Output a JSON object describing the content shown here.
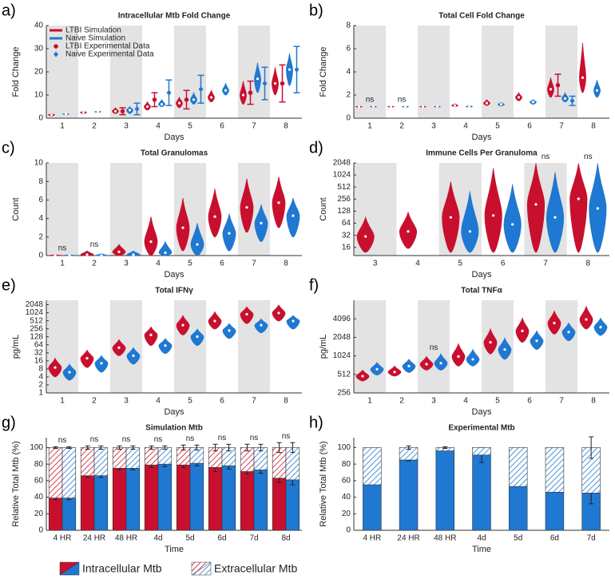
{
  "chart_data": [
    {
      "type": "violin",
      "label": "a)",
      "title": "Intracellular Mtb Fold Change",
      "xlabel": "Days",
      "ylabel": "Fold Change",
      "shaded": true,
      "legend": "upper left",
      "categories": [
        "1",
        "2",
        "3",
        "4",
        "5",
        "6",
        "7",
        "8"
      ],
      "ylim": [
        0,
        40
      ],
      "yticks": [
        0,
        10,
        20,
        30,
        40
      ],
      "series": [
        {
          "name": "LTBI Simulation",
          "color": "#c8102e",
          "values": [
            1.5,
            2.5,
            3,
            5,
            6.5,
            9,
            10,
            15
          ],
          "low": [
            1,
            2,
            2,
            3.5,
            4.5,
            7,
            6,
            10
          ],
          "high": [
            2,
            3,
            4.5,
            7,
            9,
            12,
            16,
            22
          ]
        },
        {
          "name": "Naive Simulation",
          "color": "#1f78d1",
          "values": [
            1.8,
            2.8,
            3.5,
            6,
            8,
            12,
            17,
            21
          ],
          "low": [
            1.5,
            2.5,
            2,
            5,
            6,
            10,
            11,
            14
          ],
          "high": [
            2,
            3,
            5,
            8,
            11,
            15,
            24,
            28
          ]
        },
        {
          "name": "LTBI Experimental Data",
          "color": "#c8102e",
          "marker": "circle",
          "values": [
            null,
            null,
            3,
            8,
            8,
            null,
            11,
            15
          ],
          "errors": [
            null,
            null,
            1.5,
            3,
            4,
            null,
            5,
            8
          ]
        },
        {
          "name": "Naive Experimental Data",
          "color": "#1f78d1",
          "marker": "diamond",
          "values": [
            null,
            null,
            4,
            11,
            12.5,
            null,
            15,
            21
          ],
          "errors": [
            null,
            null,
            2.5,
            5.5,
            6,
            null,
            7,
            10
          ]
        }
      ]
    },
    {
      "type": "violin",
      "label": "b)",
      "title": "Total Cell Fold Change",
      "xlabel": "Days",
      "ylabel": "Fold Change",
      "shaded": true,
      "categories": [
        "1",
        "2",
        "3",
        "4",
        "5",
        "6",
        "7",
        "8"
      ],
      "ylim": [
        0,
        8
      ],
      "yticks": [
        0,
        2,
        4,
        6,
        8
      ],
      "annotations": [
        {
          "text": "ns",
          "category": "1"
        },
        {
          "text": "ns",
          "category": "2"
        }
      ],
      "series": [
        {
          "name": "LTBI Simulation",
          "color": "#c8102e",
          "values": [
            1,
            1,
            1,
            1.1,
            1.3,
            1.8,
            2.5,
            3.5
          ],
          "low": [
            0.95,
            0.95,
            0.95,
            1,
            1.1,
            1.5,
            1.8,
            2.2
          ],
          "high": [
            1.05,
            1.05,
            1.05,
            1.25,
            1.6,
            2.2,
            3.5,
            6.5
          ]
        },
        {
          "name": "Naive Simulation",
          "color": "#1f78d1",
          "values": [
            1,
            1,
            1,
            1,
            1.2,
            1.4,
            1.7,
            2.4
          ],
          "low": [
            0.95,
            0.95,
            0.95,
            0.95,
            1.05,
            1.2,
            1.4,
            1.8
          ],
          "high": [
            1.05,
            1.05,
            1.05,
            1.1,
            1.35,
            1.6,
            2.2,
            3.3
          ]
        },
        {
          "name": "LTBI Experimental Data",
          "color": "#c8102e",
          "marker": "circle",
          "values": [
            null,
            null,
            null,
            null,
            null,
            null,
            2.85,
            null
          ],
          "errors": [
            null,
            null,
            null,
            null,
            null,
            null,
            0.95,
            null
          ]
        },
        {
          "name": "Naive Experimental Data",
          "color": "#1f78d1",
          "marker": "diamond",
          "values": [
            null,
            null,
            null,
            null,
            null,
            null,
            1.5,
            null
          ],
          "errors": [
            null,
            null,
            null,
            null,
            null,
            null,
            0.4,
            null
          ]
        }
      ]
    },
    {
      "type": "violin",
      "label": "c)",
      "title": "Total Granulomas",
      "xlabel": "Days",
      "ylabel": "Count",
      "shaded": true,
      "categories": [
        "1",
        "2",
        "3",
        "4",
        "5",
        "6",
        "7",
        "8"
      ],
      "ylim": [
        0,
        10
      ],
      "yticks": [
        0,
        2,
        4,
        6,
        8,
        10
      ],
      "annotations": [
        {
          "text": "ns",
          "category": "1"
        },
        {
          "text": "ns",
          "category": "2"
        }
      ],
      "series": [
        {
          "name": "LTBI Simulation",
          "color": "#c8102e",
          "values": [
            0,
            0.1,
            0.4,
            1.5,
            3,
            4.2,
            5.2,
            5.7
          ],
          "low": [
            0,
            0,
            0,
            0,
            0.5,
            2,
            2.5,
            3
          ],
          "high": [
            0.1,
            0.5,
            1.2,
            4.2,
            6.2,
            7.2,
            8.3,
            8.5
          ]
        },
        {
          "name": "Naive Simulation",
          "color": "#1f78d1",
          "values": [
            0,
            0,
            0.1,
            0.3,
            1.2,
            2.4,
            3.5,
            4.3
          ],
          "low": [
            0,
            0,
            0,
            0,
            0,
            0.5,
            1.5,
            2
          ],
          "high": [
            0.1,
            0.2,
            0.5,
            1.5,
            3.5,
            4.5,
            5.5,
            6.2
          ]
        }
      ]
    },
    {
      "type": "violin",
      "label": "d)",
      "title": "Immune Cells Per Granuloma",
      "xlabel": "Days",
      "ylabel": "Count",
      "shaded": true,
      "log_scale": true,
      "categories": [
        "3",
        "4",
        "5",
        "6",
        "7",
        "8"
      ],
      "ylim": [
        10,
        2048
      ],
      "yticks": [
        16,
        32,
        64,
        128,
        256,
        512,
        1024,
        2048
      ],
      "annotations": [
        {
          "text": "ns",
          "category": "7"
        },
        {
          "text": "ns",
          "category": "8"
        }
      ],
      "series": [
        {
          "name": "LTBI Simulation",
          "color": "#c8102e",
          "values": [
            30,
            40,
            90,
            100,
            190,
            260
          ],
          "low": [
            12,
            15,
            12,
            12,
            12,
            12
          ],
          "high": [
            90,
            120,
            700,
            1500,
            2000,
            2000
          ]
        },
        {
          "name": "Naive Simulation",
          "color": "#1f78d1",
          "values": [
            null,
            null,
            40,
            60,
            90,
            150
          ],
          "low": [
            null,
            null,
            12,
            12,
            12,
            12
          ],
          "high": [
            null,
            null,
            400,
            600,
            1200,
            2000
          ]
        }
      ]
    },
    {
      "type": "violin",
      "label": "e)",
      "title": "Total IFNγ",
      "xlabel": "Days",
      "ylabel": "pg/mL",
      "shaded": true,
      "log_scale": true,
      "categories": [
        "1",
        "2",
        "3",
        "4",
        "5",
        "6",
        "7",
        "8"
      ],
      "ylim": [
        1,
        3000
      ],
      "yticks": [
        1,
        2,
        4,
        8,
        16,
        32,
        64,
        128,
        256,
        512,
        1024,
        2048
      ],
      "series": [
        {
          "name": "LTBI Simulation",
          "color": "#c8102e",
          "values": [
            9,
            20,
            50,
            150,
            350,
            500,
            900,
            1000
          ],
          "low": [
            4,
            9,
            25,
            60,
            150,
            250,
            400,
            500
          ],
          "high": [
            20,
            40,
            100,
            300,
            800,
            1100,
            1700,
            2000
          ]
        },
        {
          "name": "Naive Simulation",
          "color": "#1f78d1",
          "values": [
            6,
            13,
            25,
            60,
            130,
            220,
            350,
            500
          ],
          "low": [
            3,
            6,
            12,
            30,
            60,
            110,
            180,
            250
          ],
          "high": [
            12,
            25,
            50,
            110,
            250,
            400,
            600,
            800
          ]
        }
      ]
    },
    {
      "type": "violin",
      "label": "f)",
      "title": "Total TNFα",
      "xlabel": "Days",
      "ylabel": "pg/mL",
      "shaded": true,
      "log_scale": true,
      "categories": [
        "1",
        "2",
        "3",
        "4",
        "5",
        "6",
        "7",
        "8"
      ],
      "ylim": [
        256,
        8192
      ],
      "yticks": [
        256,
        512,
        1024,
        2048,
        4096
      ],
      "annotations": [
        {
          "text": "ns",
          "category": "3"
        }
      ],
      "series": [
        {
          "name": "LTBI Simulation",
          "color": "#c8102e",
          "values": [
            480,
            560,
            750,
            1000,
            1700,
            2600,
            3500,
            4000
          ],
          "low": [
            400,
            480,
            600,
            700,
            1100,
            1700,
            2300,
            2800
          ],
          "high": [
            600,
            700,
            1000,
            1600,
            2800,
            4200,
            5500,
            6500
          ]
        },
        {
          "name": "Naive Simulation",
          "color": "#1f78d1",
          "values": [
            620,
            700,
            780,
            900,
            1300,
            1800,
            2500,
            3000
          ],
          "low": [
            500,
            550,
            600,
            700,
            900,
            1300,
            1800,
            2200
          ],
          "high": [
            800,
            900,
            1100,
            1300,
            2000,
            2600,
            3500,
            4200
          ]
        }
      ]
    },
    {
      "type": "stacked-bar",
      "label": "g)",
      "title": "Simulation Mtb",
      "xlabel": "Time",
      "ylabel": "Relative Total Mtb (%)",
      "categories": [
        "4 HR",
        "24 HR",
        "48 HR",
        "4d",
        "5d",
        "6d",
        "7d",
        "8d"
      ],
      "ylim": [
        0,
        112
      ],
      "yticks": [
        0,
        20,
        40,
        60,
        80,
        100
      ],
      "annotations": [
        {
          "text": "ns",
          "category": "4 HR"
        },
        {
          "text": "ns",
          "category": "24 HR"
        },
        {
          "text": "ns",
          "category": "48 HR"
        },
        {
          "text": "ns",
          "category": "4d"
        },
        {
          "text": "ns",
          "category": "5d"
        },
        {
          "text": "ns",
          "category": "6d"
        },
        {
          "text": "ns",
          "category": "7d"
        },
        {
          "text": "ns",
          "category": "8d"
        }
      ],
      "groups": [
        {
          "color": "#c8102e",
          "stack": [
            {
              "hatch": false,
              "values": [
                39,
                66,
                75,
                79,
                79,
                76,
                71,
                63
              ],
              "errors": [
                2,
                2,
                2,
                3,
                3,
                5,
                3,
                5
              ]
            },
            {
              "hatch": true,
              "values": [
                61,
                34,
                25,
                21,
                21,
                24,
                29,
                37
              ],
              "errors": [
                1,
                2,
                2,
                2,
                3,
                4,
                4,
                6
              ]
            }
          ]
        },
        {
          "color": "#1f78d1",
          "stack": [
            {
              "hatch": false,
              "values": [
                39,
                66,
                75,
                80,
                81,
                78,
                73,
                61
              ],
              "errors": [
                2,
                2,
                2,
                3,
                3,
                4,
                4,
                6
              ]
            },
            {
              "hatch": true,
              "values": [
                61,
                34,
                25,
                20,
                19,
                22,
                27,
                39
              ],
              "errors": [
                1,
                2,
                2,
                2,
                3,
                4,
                4,
                6
              ]
            }
          ]
        }
      ]
    },
    {
      "type": "stacked-bar",
      "label": "h)",
      "title": "Experimental Mtb",
      "xlabel": "Time",
      "ylabel": "Relative Total Mtb (%)",
      "categories": [
        "4 HR",
        "24 HR",
        "48 HR",
        "4d",
        "5d",
        "6d",
        "7d"
      ],
      "ylim": [
        0,
        112
      ],
      "yticks": [
        0,
        20,
        40,
        60,
        80,
        100
      ],
      "groups": [
        {
          "color": "#1f78d1",
          "stack": [
            {
              "hatch": false,
              "values": [
                55,
                85,
                96,
                91,
                53,
                46,
                45
              ],
              "errors": [
                null,
                1,
                null,
                9,
                null,
                null,
                13
              ]
            },
            {
              "hatch": true,
              "values": [
                45,
                15,
                4,
                9,
                47,
                54,
                55
              ],
              "errors": [
                null,
                2,
                1,
                null,
                null,
                null,
                13
              ]
            }
          ]
        }
      ]
    }
  ],
  "legend": [
    {
      "name": "Intracellular Mtb",
      "hatch": false
    },
    {
      "name": "Extracellular Mtb",
      "hatch": true
    }
  ]
}
